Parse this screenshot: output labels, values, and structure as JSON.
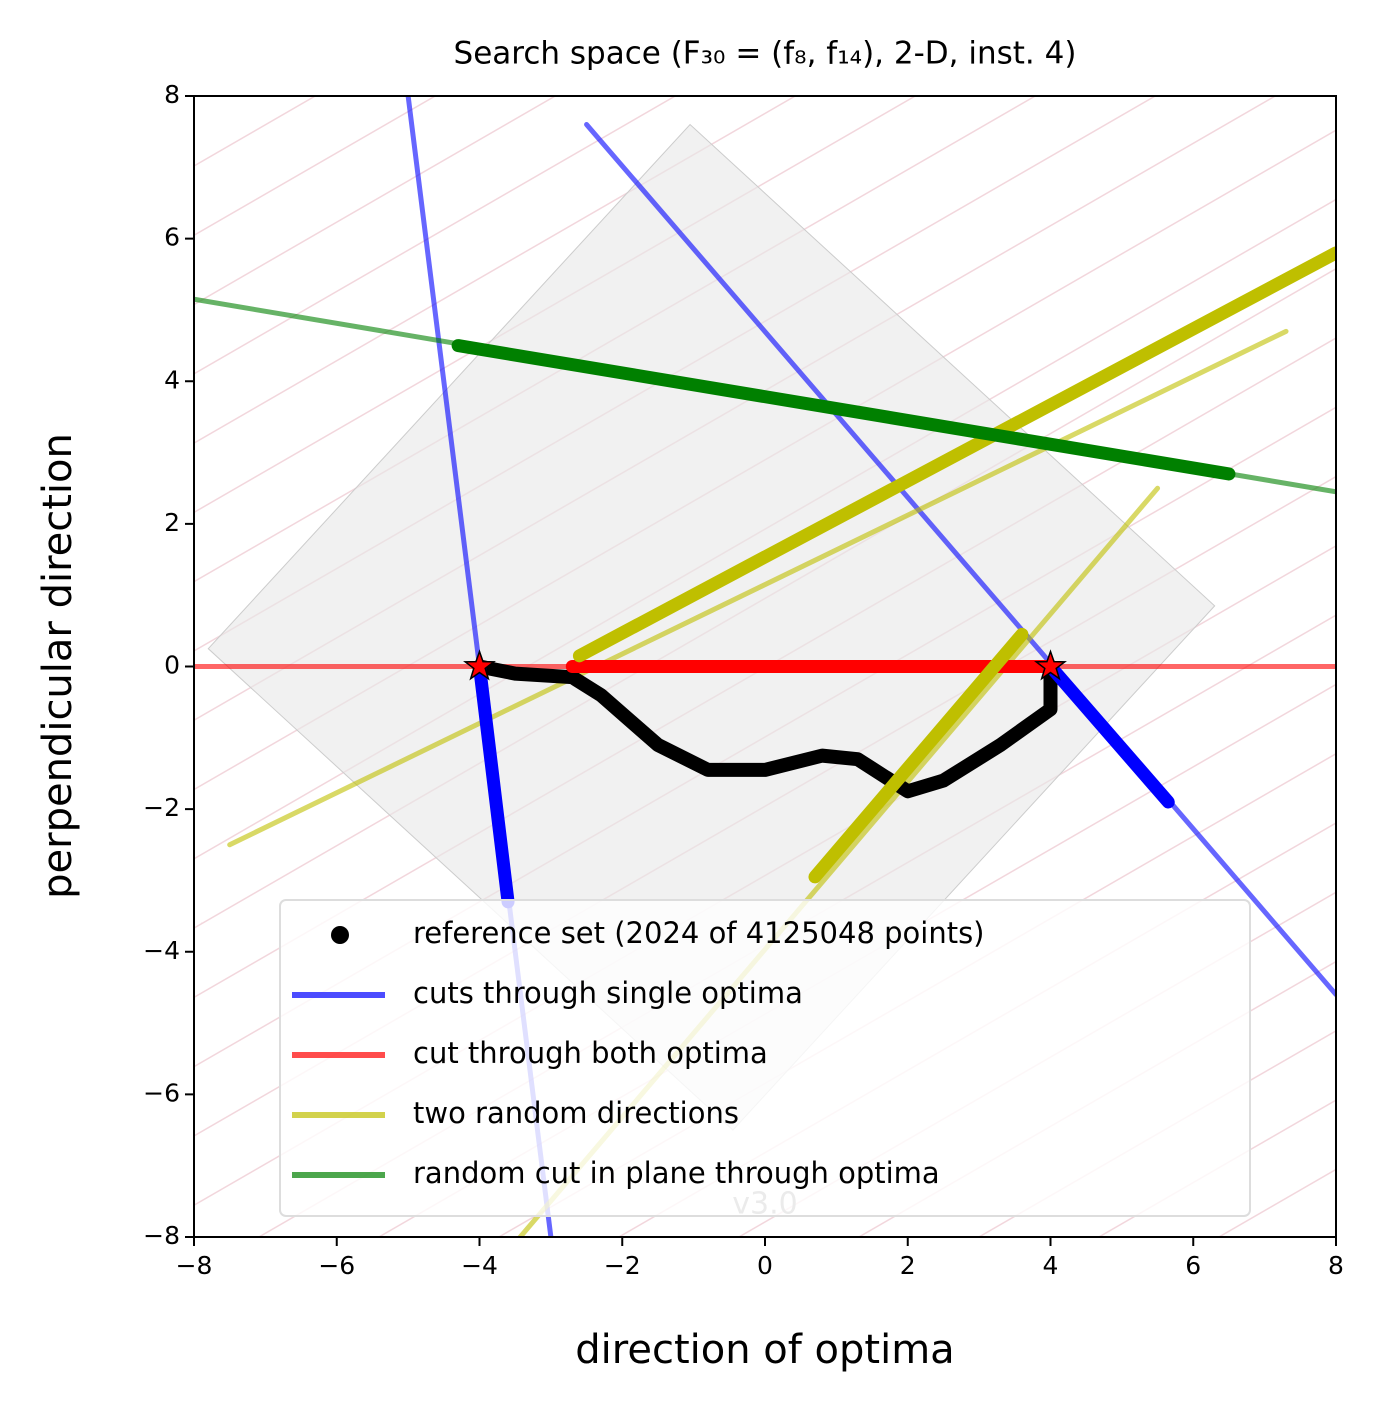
{
  "chart_data": {
    "type": "line",
    "title": "Search space (F₃₀ = (f₈, f₁₄), 2-D, inst. 4)",
    "x_label": "direction of optima",
    "y_label": "perpendicular direction",
    "annotation": "v3.0",
    "xlim": [
      -8,
      8
    ],
    "ylim": [
      -8,
      8
    ],
    "xticks": [
      {
        "value": -8,
        "label": "−8"
      },
      {
        "value": -6,
        "label": "−6"
      },
      {
        "value": -4,
        "label": "−4"
      },
      {
        "value": -2,
        "label": "−2"
      },
      0,
      2,
      4,
      6,
      8
    ],
    "yticks": [
      {
        "value": -8,
        "label": "−8"
      },
      {
        "value": -6,
        "label": "−6"
      },
      {
        "value": -4,
        "label": "−4"
      },
      {
        "value": -2,
        "label": "−2"
      },
      0,
      2,
      4,
      6,
      8
    ],
    "legend": "lower center",
    "region": {
      "x": [
        -7.8,
        -1.05,
        6.3,
        -0.45
      ],
      "y": [
        0.25,
        7.6,
        0.85,
        -6.5
      ]
    },
    "series": [
      {
        "name": "reference set (2024 of 4125048 points)",
        "color": "#000000",
        "marker": true,
        "lines": [
          {
            "x": [
              -4,
              -3.5,
              -2.7,
              -2.3,
              -1.5,
              -0.8,
              0,
              0.8,
              1.3,
              2,
              2.5,
              3.3,
              4,
              4
            ],
            "y": [
              0,
              -0.1,
              -0.15,
              -0.4,
              -1.1,
              -1.45,
              -1.45,
              -1.25,
              -1.3,
              -1.75,
              -1.6,
              -1.1,
              -0.6,
              0
            ]
          }
        ]
      },
      {
        "name": "cuts through single optima",
        "color": "#0000ff",
        "lines": [
          {
            "x": [
              -5,
              -3
            ],
            "y": [
              8,
              -8
            ]
          },
          {
            "x": [
              -2.5,
              8
            ],
            "y": [
              7.6,
              -4.6
            ]
          }
        ],
        "highlights": [
          {
            "x": [
              -4,
              -3.6
            ],
            "y": [
              0,
              -3.3
            ]
          },
          {
            "x": [
              4,
              5.65
            ],
            "y": [
              0,
              -1.9
            ]
          }
        ]
      },
      {
        "name": "cut through both optima",
        "color": "#ff0000",
        "lines": [
          {
            "x": [
              -8,
              8
            ],
            "y": [
              0,
              0
            ]
          }
        ],
        "highlights": [
          {
            "x": [
              -2.7,
              4
            ],
            "y": [
              0,
              0
            ]
          }
        ]
      },
      {
        "name": "two random directions",
        "color": "#bfbf00",
        "lines": [
          {
            "x": [
              -7.5,
              7.3
            ],
            "y": [
              -2.5,
              4.7
            ]
          },
          {
            "x": [
              -3.6,
              5.5
            ],
            "y": [
              -8.2,
              2.5
            ]
          }
        ],
        "highlights": [
          {
            "x": [
              -2.6,
              8
            ],
            "y": [
              0.15,
              5.8
            ]
          },
          {
            "x": [
              0.7,
              3.6
            ],
            "y": [
              -2.95,
              0.45
            ]
          }
        ]
      },
      {
        "name": "random cut in plane through optima",
        "color": "#008000",
        "lines": [
          {
            "x": [
              -8,
              8
            ],
            "y": [
              5.15,
              2.45
            ]
          }
        ],
        "highlights": [
          {
            "x": [
              -4.3,
              6.5
            ],
            "y": [
              4.5,
              2.7
            ]
          }
        ]
      }
    ],
    "optima": {
      "color": "#ff0000",
      "x": [
        -4,
        4
      ],
      "y": [
        0,
        0
      ]
    }
  }
}
